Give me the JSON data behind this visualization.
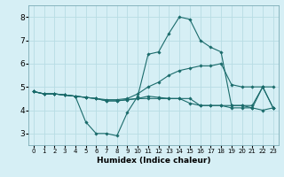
{
  "xlabel": "Humidex (Indice chaleur)",
  "background_color": "#d6eff5",
  "grid_color": "#b8dce4",
  "line_color": "#1a6b6b",
  "xlim": [
    -0.5,
    23.5
  ],
  "ylim": [
    2.5,
    8.5
  ],
  "yticks": [
    3,
    4,
    5,
    6,
    7,
    8
  ],
  "xticks": [
    0,
    1,
    2,
    3,
    4,
    5,
    6,
    7,
    8,
    9,
    10,
    11,
    12,
    13,
    14,
    15,
    16,
    17,
    18,
    19,
    20,
    21,
    22,
    23
  ],
  "lines": [
    {
      "x": [
        0,
        1,
        2,
        3,
        4,
        5,
        6,
        7,
        8,
        9,
        10,
        11,
        12,
        13,
        14,
        15,
        16,
        17,
        18,
        19,
        20,
        21,
        22,
        23
      ],
      "y": [
        4.8,
        4.7,
        4.7,
        4.65,
        4.6,
        3.5,
        3.0,
        3.0,
        2.9,
        3.9,
        4.6,
        6.4,
        6.5,
        7.3,
        8.0,
        7.9,
        7.0,
        6.7,
        6.5,
        4.2,
        4.2,
        4.2,
        5.0,
        4.1
      ]
    },
    {
      "x": [
        0,
        1,
        2,
        3,
        4,
        5,
        6,
        7,
        8,
        9,
        10,
        11,
        12,
        13,
        14,
        15,
        16,
        17,
        18,
        19,
        20,
        21,
        22,
        23
      ],
      "y": [
        4.8,
        4.7,
        4.7,
        4.65,
        4.6,
        4.55,
        4.5,
        4.45,
        4.45,
        4.5,
        4.7,
        5.0,
        5.2,
        5.5,
        5.7,
        5.8,
        5.9,
        5.9,
        6.0,
        5.1,
        5.0,
        5.0,
        5.0,
        5.0
      ]
    },
    {
      "x": [
        0,
        1,
        2,
        3,
        4,
        5,
        6,
        7,
        8,
        9,
        10,
        11,
        12,
        13,
        14,
        15,
        16,
        17,
        18,
        19,
        20,
        21,
        22,
        23
      ],
      "y": [
        4.8,
        4.7,
        4.7,
        4.65,
        4.6,
        4.55,
        4.5,
        4.4,
        4.4,
        4.45,
        4.5,
        4.6,
        4.55,
        4.5,
        4.5,
        4.3,
        4.2,
        4.2,
        4.2,
        4.2,
        4.2,
        4.1,
        4.0,
        4.1
      ]
    },
    {
      "x": [
        0,
        1,
        2,
        3,
        4,
        5,
        6,
        7,
        8,
        9,
        10,
        11,
        12,
        13,
        14,
        15,
        16,
        17,
        18,
        19,
        20,
        21,
        22,
        23
      ],
      "y": [
        4.8,
        4.7,
        4.7,
        4.65,
        4.6,
        4.55,
        4.5,
        4.4,
        4.4,
        4.45,
        4.5,
        4.5,
        4.5,
        4.5,
        4.5,
        4.5,
        4.2,
        4.2,
        4.2,
        4.1,
        4.1,
        4.1,
        5.0,
        4.1
      ]
    }
  ]
}
